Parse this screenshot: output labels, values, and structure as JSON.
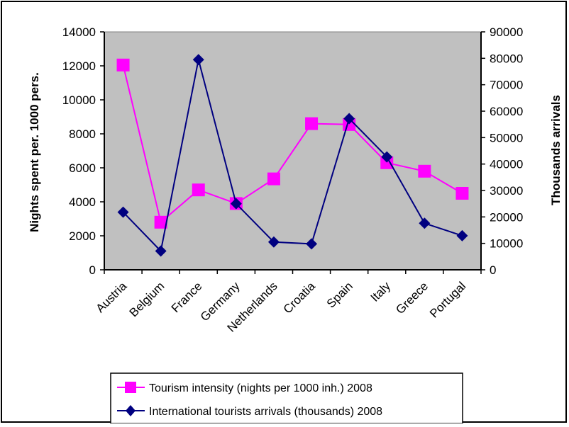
{
  "chart_data": {
    "type": "line",
    "title": "",
    "categories": [
      "Austria",
      "Belgium",
      "France",
      "Germany",
      "Netherlands",
      "Croatia",
      "Spain",
      "Italy",
      "Greece",
      "Portugal"
    ],
    "y_left": {
      "label": "Nights spent per. 1000 pers.",
      "range": [
        0,
        14000
      ],
      "ticks": [
        "0",
        "2000",
        "4000",
        "6000",
        "8000",
        "10000",
        "12000",
        "14000"
      ]
    },
    "y_right": {
      "label": "Thousands arrivals",
      "range": [
        0,
        90000
      ],
      "ticks": [
        "0",
        "10000",
        "20000",
        "30000",
        "40000",
        "50000",
        "60000",
        "70000",
        "80000",
        "90000"
      ]
    },
    "series": [
      {
        "name": "Tourism intensity (nights per 1000 inh.) 2008",
        "axis": "left",
        "color": "#ff00ff",
        "marker": "square",
        "values": [
          12050,
          2800,
          4700,
          3900,
          5350,
          8600,
          8550,
          6300,
          5800,
          4500
        ]
      },
      {
        "name": "International tourists arrivals (thousands) 2008",
        "axis": "right",
        "color": "#000080",
        "marker": "diamond",
        "values": [
          21800,
          7100,
          79500,
          25000,
          10500,
          9800,
          57200,
          42700,
          17600,
          12900
        ]
      }
    ],
    "plot_background": "#c0c0c0",
    "grid": false,
    "legend_position": "bottom"
  }
}
